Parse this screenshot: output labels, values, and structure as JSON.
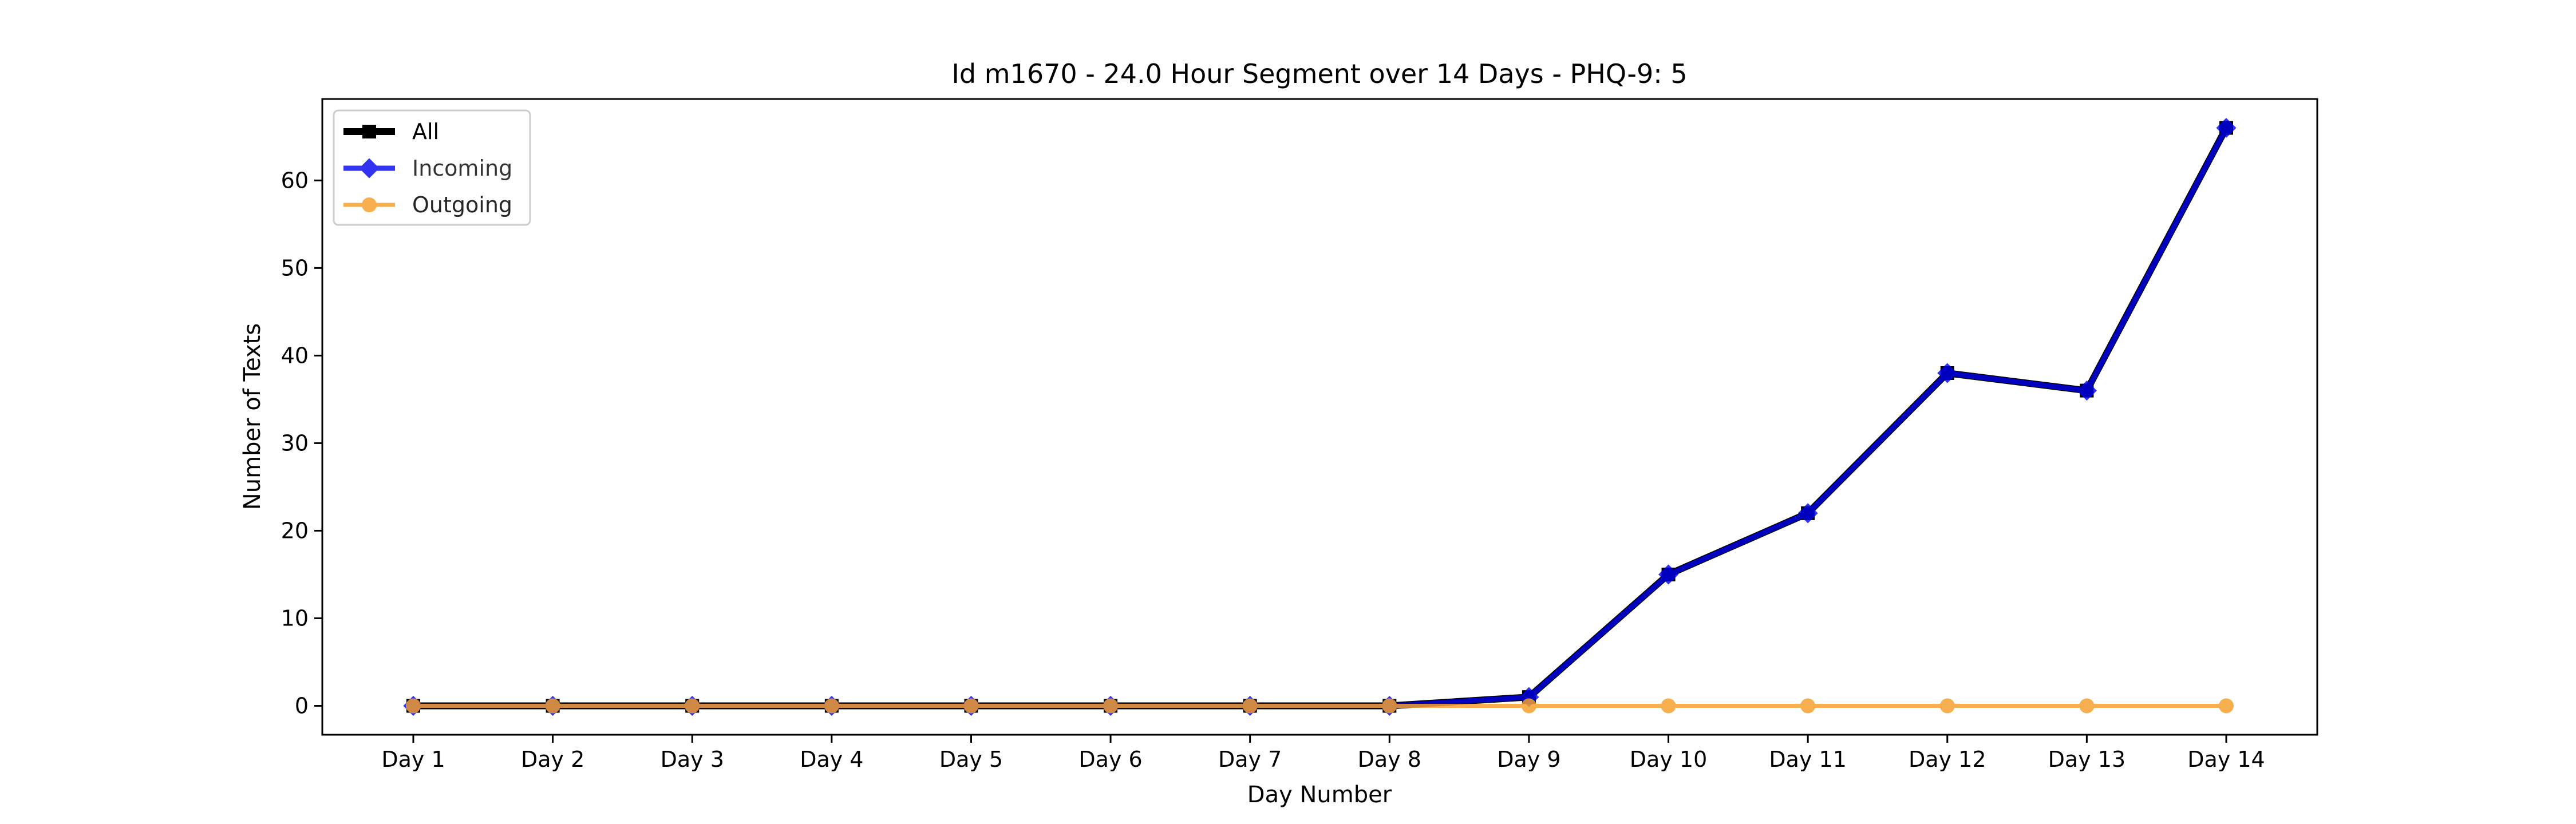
{
  "chart_data": {
    "type": "line",
    "title": "Id m1670 - 24.0 Hour Segment over 14 Days - PHQ-9: 5",
    "xlabel": "Day Number",
    "ylabel": "Number of Texts",
    "categories": [
      "Day 1",
      "Day 2",
      "Day 3",
      "Day 4",
      "Day 5",
      "Day 6",
      "Day 7",
      "Day 8",
      "Day 9",
      "Day 10",
      "Day 11",
      "Day 12",
      "Day 13",
      "Day 14"
    ],
    "y_ticks": [
      0,
      10,
      20,
      30,
      40,
      50,
      60
    ],
    "ylim": [
      -3.3,
      69.3
    ],
    "grid": false,
    "legend_position": "upper left",
    "series": [
      {
        "name": "All",
        "color": "#000000",
        "marker": "square",
        "values": [
          0,
          0,
          0,
          0,
          0,
          0,
          0,
          0,
          1,
          15,
          22,
          38,
          36,
          66
        ]
      },
      {
        "name": "Incoming",
        "color": "#0000ee",
        "marker": "diamond",
        "values": [
          0,
          0,
          0,
          0,
          0,
          0,
          0,
          0,
          1,
          15,
          22,
          38,
          36,
          66
        ]
      },
      {
        "name": "Outgoing",
        "color": "#f5a030",
        "marker": "circle",
        "values": [
          0,
          0,
          0,
          0,
          0,
          0,
          0,
          0,
          0,
          0,
          0,
          0,
          0,
          0
        ]
      }
    ]
  }
}
